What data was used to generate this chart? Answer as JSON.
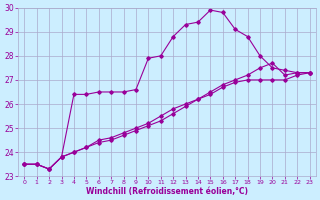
{
  "xlabel": "Windchill (Refroidissement éolien,°C)",
  "background_color": "#cceeff",
  "line_color": "#990099",
  "grid_color": "#aaaacc",
  "xlim": [
    -0.5,
    23.5
  ],
  "ylim": [
    23,
    30
  ],
  "yticks": [
    23,
    24,
    25,
    26,
    27,
    28,
    29,
    30
  ],
  "xticks": [
    0,
    1,
    2,
    3,
    4,
    5,
    6,
    7,
    8,
    9,
    10,
    11,
    12,
    13,
    14,
    15,
    16,
    17,
    18,
    19,
    20,
    21,
    22,
    23
  ],
  "series1_x": [
    0,
    1,
    2,
    3,
    4,
    5,
    6,
    7,
    8,
    9,
    10,
    11,
    12,
    13,
    14,
    15,
    16,
    17,
    18,
    19,
    20,
    21,
    22,
    23
  ],
  "series1_y": [
    23.5,
    23.5,
    23.3,
    23.8,
    26.4,
    26.4,
    26.5,
    26.5,
    26.5,
    26.6,
    27.9,
    28.0,
    28.8,
    29.3,
    29.4,
    29.9,
    29.8,
    29.1,
    28.8,
    28.0,
    27.5,
    27.4,
    27.3,
    27.3
  ],
  "series2_x": [
    0,
    1,
    2,
    3,
    4,
    5,
    6,
    7,
    8,
    9,
    10,
    11,
    12,
    13,
    14,
    15,
    16,
    17,
    18,
    19,
    20,
    21,
    22,
    23
  ],
  "series2_y": [
    23.5,
    23.5,
    23.3,
    23.8,
    24.0,
    24.2,
    24.5,
    24.6,
    24.8,
    25.0,
    25.2,
    25.5,
    25.8,
    26.0,
    26.2,
    26.5,
    26.8,
    27.0,
    27.2,
    27.5,
    27.7,
    27.2,
    27.3,
    27.3
  ],
  "series3_x": [
    0,
    1,
    2,
    3,
    4,
    5,
    6,
    7,
    8,
    9,
    10,
    11,
    12,
    13,
    14,
    15,
    16,
    17,
    18,
    19,
    20,
    21,
    22,
    23
  ],
  "series3_y": [
    23.5,
    23.5,
    23.3,
    23.8,
    24.0,
    24.2,
    24.4,
    24.5,
    24.7,
    24.9,
    25.1,
    25.3,
    25.6,
    25.9,
    26.2,
    26.4,
    26.7,
    26.9,
    27.0,
    27.0,
    27.0,
    27.0,
    27.2,
    27.3
  ]
}
